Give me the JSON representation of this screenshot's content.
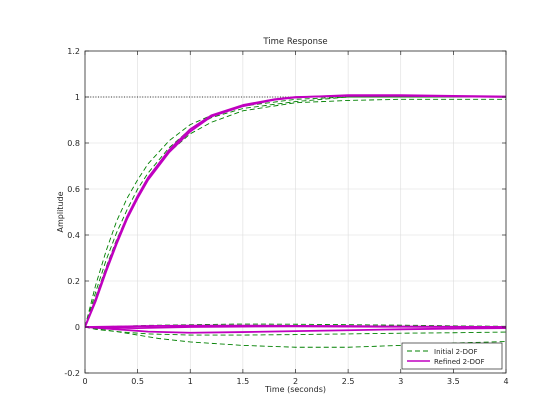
{
  "chart_data": {
    "type": "line",
    "title": "Time Response",
    "xlabel": "Time (seconds)",
    "ylabel": "Amplitude",
    "xlim": [
      0,
      4
    ],
    "ylim": [
      -0.2,
      1.2
    ],
    "xticks": [
      0,
      0.5,
      1,
      1.5,
      2,
      2.5,
      3,
      3.5,
      4
    ],
    "xtick_labels": [
      "0",
      "0.5",
      "1",
      "1.5",
      "2",
      "2.5",
      "3",
      "3.5",
      "4"
    ],
    "yticks": [
      -0.2,
      0,
      0.2,
      0.4,
      0.6,
      0.8,
      1,
      1.2
    ],
    "ytick_labels": [
      "-0.2",
      "0",
      "0.2",
      "0.4",
      "0.6",
      "0.8",
      "1",
      "1.2"
    ],
    "grid": true,
    "legend_position": "bottom-right",
    "reference_line": {
      "y": 1,
      "style": "dotted",
      "color": "#000000"
    },
    "series": [
      {
        "name": "Initial 2-DOF",
        "style": "dashed",
        "color": "#008000",
        "show_in_legend": true,
        "x": [
          0,
          0.1,
          0.2,
          0.3,
          0.4,
          0.5,
          0.6,
          0.8,
          1.0,
          1.2,
          1.5,
          2.0,
          2.5,
          3.0,
          3.5,
          4.0
        ],
        "y": [
          0,
          0.18,
          0.33,
          0.46,
          0.56,
          0.64,
          0.71,
          0.81,
          0.88,
          0.92,
          0.96,
          0.99,
          1.0,
          1.0,
          1.0,
          1.0
        ]
      },
      {
        "name": "Initial 2-DOF",
        "style": "dashed",
        "color": "#008000",
        "show_in_legend": false,
        "x": [
          0,
          0.1,
          0.2,
          0.3,
          0.4,
          0.5,
          0.6,
          0.8,
          1.0,
          1.2,
          1.5,
          2.0,
          2.5,
          3.0,
          3.5,
          4.0
        ],
        "y": [
          0,
          0.15,
          0.29,
          0.41,
          0.51,
          0.6,
          0.67,
          0.78,
          0.86,
          0.91,
          0.95,
          0.98,
          1.0,
          1.0,
          1.0,
          1.0
        ]
      },
      {
        "name": "Initial 2-DOF",
        "style": "dashed",
        "color": "#008000",
        "show_in_legend": false,
        "x": [
          0,
          0.1,
          0.2,
          0.3,
          0.4,
          0.5,
          0.6,
          0.8,
          1.0,
          1.2,
          1.5,
          2.0,
          2.5,
          3.0,
          3.5,
          4.0
        ],
        "y": [
          0,
          0.13,
          0.26,
          0.38,
          0.48,
          0.57,
          0.65,
          0.76,
          0.84,
          0.89,
          0.94,
          0.975,
          0.985,
          0.99,
          0.99,
          0.99
        ]
      },
      {
        "name": "Initial 2-DOF",
        "style": "dashed",
        "color": "#008000",
        "show_in_legend": false,
        "x": [
          0,
          0.1,
          0.2,
          0.3,
          0.5,
          0.7,
          1.0,
          1.5,
          2.0,
          2.5,
          3.0,
          3.5,
          4.0
        ],
        "y": [
          0,
          -0.01,
          -0.015,
          -0.02,
          -0.035,
          -0.05,
          -0.065,
          -0.08,
          -0.088,
          -0.088,
          -0.08,
          -0.07,
          -0.063
        ]
      },
      {
        "name": "Initial 2-DOF",
        "style": "dashed",
        "color": "#008000",
        "show_in_legend": false,
        "x": [
          0,
          0.3,
          0.6,
          1.0,
          1.5,
          2.0,
          2.5,
          3.0,
          3.5,
          4.0
        ],
        "y": [
          0,
          -0.02,
          -0.03,
          -0.035,
          -0.035,
          -0.033,
          -0.03,
          -0.027,
          -0.025,
          -0.022
        ]
      },
      {
        "name": "Initial 2-DOF",
        "style": "dashed",
        "color": "#008000",
        "show_in_legend": false,
        "x": [
          0,
          0.3,
          0.6,
          1.0,
          1.5,
          2.0,
          2.5,
          3.0,
          3.5,
          4.0
        ],
        "y": [
          0,
          0.003,
          0.007,
          0.01,
          0.013,
          0.012,
          0.01,
          0.008,
          0.005,
          0.003
        ]
      },
      {
        "name": "Refined 2-DOF",
        "style": "solid",
        "color": "#c000c0",
        "show_in_legend": true,
        "x": [
          0,
          0.1,
          0.2,
          0.3,
          0.4,
          0.5,
          0.6,
          0.8,
          1.0,
          1.2,
          1.5,
          1.8,
          2.0,
          2.5,
          3.0,
          3.5,
          4.0
        ],
        "y": [
          0,
          0.12,
          0.25,
          0.37,
          0.48,
          0.57,
          0.65,
          0.77,
          0.86,
          0.92,
          0.965,
          0.99,
          1.0,
          1.005,
          1.005,
          1.003,
          1.0
        ]
      },
      {
        "name": "Refined 2-DOF",
        "style": "solid",
        "color": "#c000c0",
        "show_in_legend": false,
        "x": [
          0,
          0.1,
          0.2,
          0.3,
          0.4,
          0.5,
          0.6,
          0.8,
          1.0,
          1.2,
          1.5,
          1.8,
          2.0,
          2.5,
          3.0,
          3.5,
          4.0
        ],
        "y": [
          0,
          0.11,
          0.24,
          0.36,
          0.47,
          0.56,
          0.64,
          0.76,
          0.85,
          0.915,
          0.96,
          0.988,
          0.998,
          1.008,
          1.008,
          1.005,
          1.002
        ]
      },
      {
        "name": "Refined 2-DOF",
        "style": "solid",
        "color": "#c000c0",
        "show_in_legend": false,
        "x": [
          0,
          0.5,
          1.0,
          1.5,
          2.0,
          2.5,
          3.0,
          3.5,
          4.0
        ],
        "y": [
          0,
          -0.005,
          0.0,
          0.002,
          0.003,
          0.002,
          0.001,
          0.0,
          0.0
        ]
      },
      {
        "name": "Refined 2-DOF",
        "style": "solid",
        "color": "#c000c0",
        "show_in_legend": false,
        "x": [
          0,
          0.3,
          0.6,
          1.0,
          1.5,
          2.0,
          2.5,
          3.0,
          3.5,
          4.0
        ],
        "y": [
          0,
          -0.01,
          -0.02,
          -0.025,
          -0.022,
          -0.018,
          -0.014,
          -0.01,
          -0.007,
          -0.005
        ]
      },
      {
        "name": "Refined 2-DOF",
        "style": "solid",
        "color": "#c000c0",
        "show_in_legend": false,
        "x": [
          0,
          0.3,
          0.6,
          1.0,
          1.5,
          2.0,
          2.5,
          3.0,
          3.5,
          4.0
        ],
        "y": [
          0,
          0.002,
          0.004,
          0.006,
          0.006,
          0.005,
          0.004,
          0.002,
          0.001,
          0.0
        ]
      }
    ]
  }
}
